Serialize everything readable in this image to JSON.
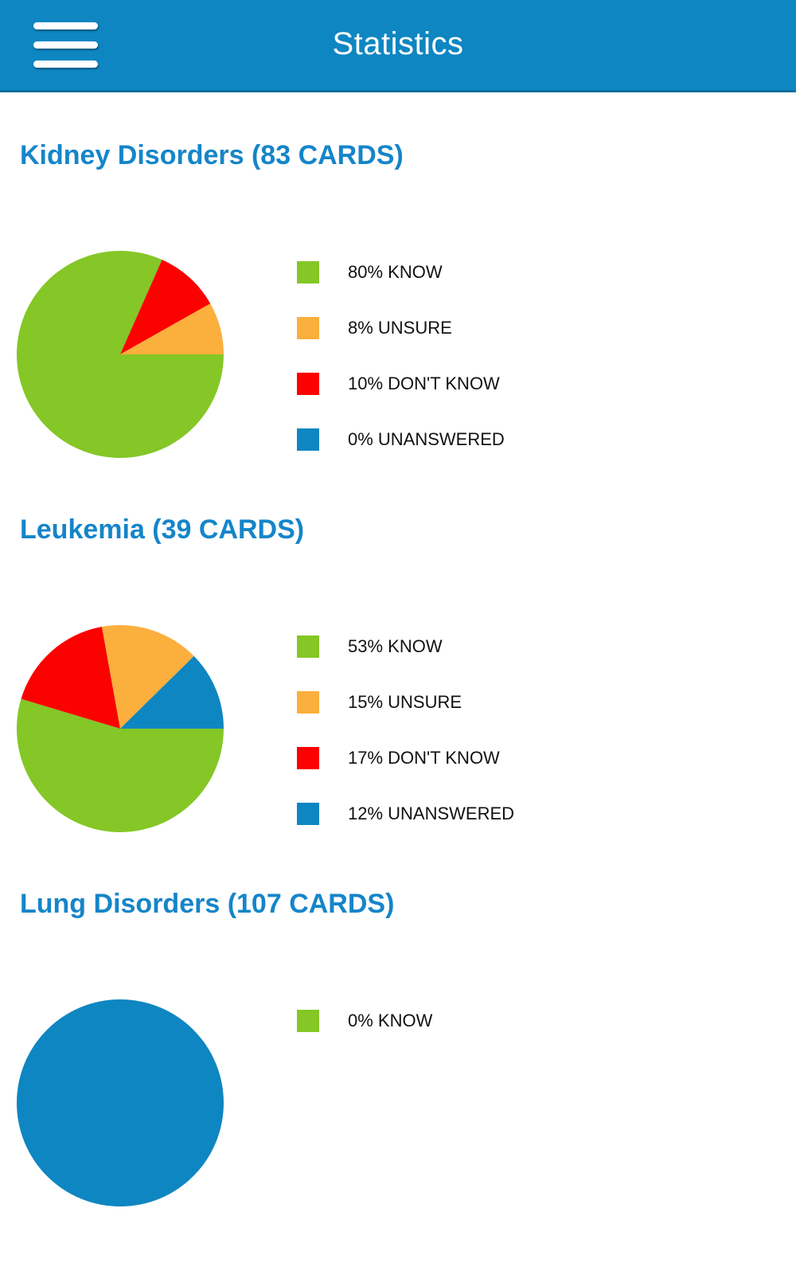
{
  "header": {
    "title": "Statistics",
    "menu_icon": "hamburger-icon"
  },
  "colors": {
    "header_bg": "#0e86c2",
    "header_border": "#0b6f9e",
    "heading_text": "#1585c9",
    "legend_text": "#111111",
    "know": "#84c726",
    "unsure": "#fbaf3d",
    "dont_know": "#fb0100",
    "unanswered": "#0e86c2"
  },
  "sections": [
    {
      "heading": "Kidney Disorders (83 CARDS)",
      "legend": [
        {
          "label": "80% KNOW",
          "color_key": "know"
        },
        {
          "label": "8% UNSURE",
          "color_key": "unsure"
        },
        {
          "label": "10% DON'T KNOW",
          "color_key": "dont_know"
        },
        {
          "label": "0% UNANSWERED",
          "color_key": "unanswered"
        }
      ]
    },
    {
      "heading": "Leukemia (39 CARDS)",
      "legend": [
        {
          "label": "53% KNOW",
          "color_key": "know"
        },
        {
          "label": "15% UNSURE",
          "color_key": "unsure"
        },
        {
          "label": "17% DON'T KNOW",
          "color_key": "dont_know"
        },
        {
          "label": "12% UNANSWERED",
          "color_key": "unanswered"
        }
      ]
    },
    {
      "heading": "Lung Disorders (107 CARDS)",
      "legend": [
        {
          "label": "0% KNOW",
          "color_key": "know"
        }
      ]
    }
  ],
  "chart_data": [
    {
      "type": "pie",
      "title": "Kidney Disorders (83 CARDS)",
      "unit": "percent",
      "legend_position": "right",
      "clockwise_order": [
        "KNOW",
        "DON'T KNOW",
        "UNSURE",
        "UNANSWERED"
      ],
      "slices": [
        {
          "label": "KNOW",
          "value": 80,
          "color_key": "know"
        },
        {
          "label": "UNSURE",
          "value": 8,
          "color_key": "unsure"
        },
        {
          "label": "DON'T KNOW",
          "value": 10,
          "color_key": "dont_know"
        },
        {
          "label": "UNANSWERED",
          "value": 0,
          "color_key": "unanswered"
        }
      ]
    },
    {
      "type": "pie",
      "title": "Leukemia (39 CARDS)",
      "unit": "percent",
      "legend_position": "right",
      "clockwise_order": [
        "KNOW",
        "DON'T KNOW",
        "UNSURE",
        "UNANSWERED"
      ],
      "slices": [
        {
          "label": "KNOW",
          "value": 53,
          "color_key": "know"
        },
        {
          "label": "UNSURE",
          "value": 15,
          "color_key": "unsure"
        },
        {
          "label": "DON'T KNOW",
          "value": 17,
          "color_key": "dont_know"
        },
        {
          "label": "UNANSWERED",
          "value": 12,
          "color_key": "unanswered"
        }
      ]
    },
    {
      "type": "pie",
      "title": "Lung Disorders (107 CARDS)",
      "unit": "percent",
      "legend_position": "right",
      "partially_visible": true,
      "clockwise_order": [
        "KNOW",
        "DON'T KNOW",
        "UNSURE",
        "UNANSWERED"
      ],
      "slices": [
        {
          "label": "KNOW",
          "value": 0,
          "color_key": "know"
        },
        {
          "label": "UNANSWERED",
          "value": 100,
          "color_key": "unanswered"
        }
      ]
    }
  ]
}
